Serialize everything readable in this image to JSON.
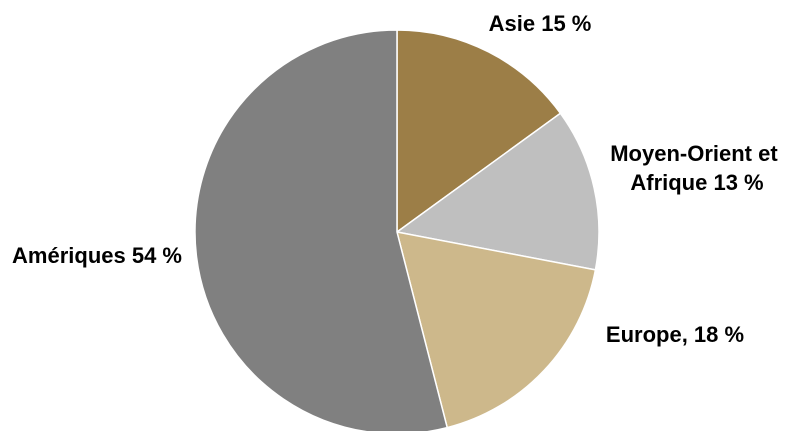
{
  "chart_data": {
    "type": "pie",
    "title": "",
    "start_angle_deg": 0,
    "direction": "clockwise",
    "slices": [
      {
        "key": "asie",
        "value": 15,
        "color": "#9c7e47",
        "label_lines": [
          "Asie 15 %"
        ]
      },
      {
        "key": "moyen-orient-afrique",
        "value": 13,
        "color": "#bfbfbf",
        "label_lines": [
          "Moyen-Orient et",
          "Afrique 13 %"
        ]
      },
      {
        "key": "europe",
        "value": 18,
        "color": "#cdb88b",
        "label_lines": [
          "Europe, 18 %"
        ]
      },
      {
        "key": "ameriques",
        "value": 54,
        "color": "#808080",
        "label_lines": [
          "Amériques 54 %"
        ]
      }
    ]
  }
}
